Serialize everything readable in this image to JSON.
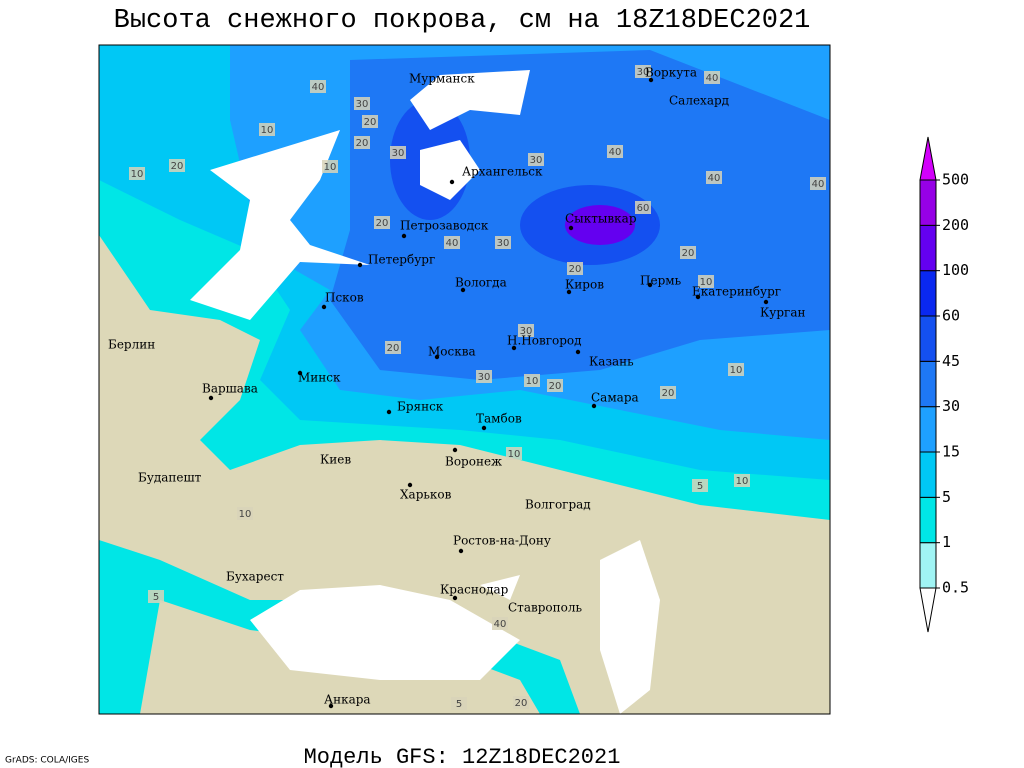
{
  "header": {
    "title": "Высота снежного покрова, см на 18Z18DEC2021"
  },
  "footer": {
    "model": "Модель GFS: 12Z18DEC2021",
    "credit": "GrADS: COLA/IGES"
  },
  "cities": [
    "Мурманск",
    "Воркута",
    "Салехард",
    "Архангельск",
    "Петрозаводск",
    "Сыктывкар",
    "Петербург",
    "Вологда",
    "Киров",
    "Пермь",
    "Екатеринбург",
    "Курган",
    "Псков",
    "Берлин",
    "Н.Новгород",
    "Москва",
    "Казань",
    "Минск",
    "Варшава",
    "Брянск",
    "Самара",
    "Тамбов",
    "Киев",
    "Воронеж",
    "Будапешт",
    "Харьков",
    "Волгоград",
    "Ростов-на-Дону",
    "Бухарест",
    "Краснодар",
    "Ставрополь",
    "Анкара"
  ],
  "contour_labels": [
    40,
    30,
    20,
    10,
    30,
    20,
    30,
    40,
    40,
    40,
    30,
    40,
    60,
    20,
    10,
    30,
    40,
    20,
    30,
    20,
    10,
    30,
    20,
    20,
    10,
    10,
    10,
    5,
    10,
    5,
    10,
    40,
    20,
    5,
    20,
    10,
    20
  ],
  "legend": {
    "levels": [
      0.5,
      1,
      5,
      15,
      30,
      45,
      60,
      100,
      200,
      500
    ],
    "colors": [
      "#ffffff",
      "#a0f4f4",
      "#00e6e6",
      "#00c8f5",
      "#1ea0ff",
      "#1e78f5",
      "#1450f0",
      "#0a28f0",
      "#6400f0",
      "#9600e6",
      "#d200fa"
    ]
  }
}
